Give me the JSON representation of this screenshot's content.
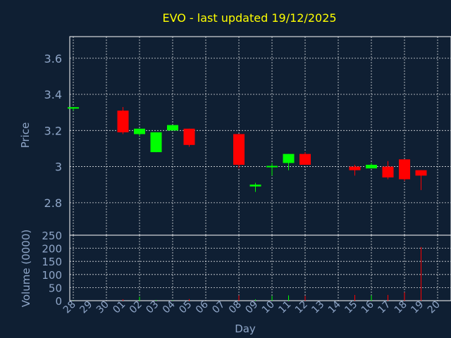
{
  "chart_data": {
    "type": "candlestick",
    "title": "EVO - last updated 19/12/2025",
    "xlabel": "Day",
    "ylabel": "Price",
    "volume_label": "Volume (0000)",
    "ylim": [
      2.62,
      3.72
    ],
    "yticks": [
      2.8,
      3,
      3.2,
      3.4,
      3.6
    ],
    "ytick_labels": [
      "2.8",
      "3",
      "3.2",
      "3.4",
      "3.6"
    ],
    "volume_ylim": [
      0,
      250
    ],
    "volume_ticks": [
      0,
      50,
      100,
      150,
      200,
      250
    ],
    "volume_tick_labels": [
      "0",
      "50",
      "100",
      "150",
      "200",
      "250"
    ],
    "grid": true,
    "up_color": "#00ff00",
    "down_color": "#ff0000",
    "days": [
      "28",
      "29",
      "30",
      "01",
      "02",
      "03",
      "04",
      "05",
      "06",
      "07",
      "08",
      "09",
      "10",
      "11",
      "12",
      "13",
      "14",
      "15",
      "16",
      "17",
      "18",
      "19",
      "20"
    ],
    "candles": [
      {
        "day": "28",
        "open": 3.32,
        "high": 3.33,
        "low": 3.31,
        "close": 3.325,
        "volume": 1
      },
      {
        "day": "01",
        "open": 3.31,
        "high": 3.33,
        "low": 3.18,
        "close": 3.19,
        "volume": 5
      },
      {
        "day": "02",
        "open": 3.18,
        "high": 3.21,
        "low": 3.17,
        "close": 3.21,
        "volume": 15
      },
      {
        "day": "03",
        "open": 3.08,
        "high": 3.19,
        "low": 3.08,
        "close": 3.19,
        "volume": 3
      },
      {
        "day": "04",
        "open": 3.2,
        "high": 3.23,
        "low": 3.2,
        "close": 3.23,
        "volume": 2
      },
      {
        "day": "05",
        "open": 3.21,
        "high": 3.21,
        "low": 3.11,
        "close": 3.12,
        "volume": 6
      },
      {
        "day": "08",
        "open": 3.18,
        "high": 3.18,
        "low": 2.99,
        "close": 3.01,
        "volume": 20
      },
      {
        "day": "09",
        "open": 2.89,
        "high": 2.91,
        "low": 2.86,
        "close": 2.9,
        "volume": 5
      },
      {
        "day": "10",
        "open": 2.995,
        "high": 3.02,
        "low": 2.95,
        "close": 3.0,
        "volume": 18
      },
      {
        "day": "11",
        "open": 3.02,
        "high": 3.07,
        "low": 2.98,
        "close": 3.07,
        "volume": 20
      },
      {
        "day": "12",
        "open": 3.07,
        "high": 3.08,
        "low": 3.01,
        "close": 3.01,
        "volume": 18
      },
      {
        "day": "15",
        "open": 3.0,
        "high": 3.01,
        "low": 2.95,
        "close": 2.98,
        "volume": 22
      },
      {
        "day": "16",
        "open": 2.99,
        "high": 3.02,
        "low": 2.99,
        "close": 3.01,
        "volume": 20
      },
      {
        "day": "17",
        "open": 3.0,
        "high": 3.03,
        "low": 2.93,
        "close": 2.94,
        "volume": 22
      },
      {
        "day": "18",
        "open": 3.04,
        "high": 3.04,
        "low": 2.92,
        "close": 2.93,
        "volume": 32
      },
      {
        "day": "19",
        "open": 2.98,
        "high": 2.98,
        "low": 2.87,
        "close": 2.95,
        "volume": 205
      }
    ]
  }
}
